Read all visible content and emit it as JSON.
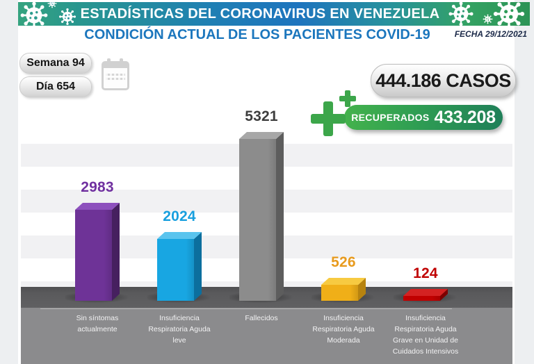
{
  "header": {
    "title": "ESTADÍSTICAS DEL CORONAVIRUS EN VENEZUELA",
    "subtitle": "CONDICIÓN ACTUAL DE LOS PACIENTES COVID-19",
    "date_label": "FECHA 29/12/2021",
    "band_gradient": [
      "#35a37f",
      "#1e74be",
      "#2b9355"
    ],
    "subtitle_color": "#1b76bd"
  },
  "counters": {
    "week_badge": "Semana 94",
    "day_badge": "Día 654",
    "cases_badge": "444.186 CASOS",
    "recovered_label": "RECUPERADOS",
    "recovered_value": "433.208",
    "recovered_pill_colors": [
      "#44b24c",
      "#1f7f58"
    ]
  },
  "icons": {
    "calendar": "calendar",
    "medical_cross": "medical-cross",
    "virus": "virus",
    "cross_color": "#3ca64a"
  },
  "chart_data": {
    "type": "bar",
    "title": "CONDICIÓN ACTUAL DE LOS PACIENTES COVID-19",
    "xlabel": "",
    "ylabel": "",
    "ylim": [
      0,
      5600
    ],
    "grid": "alternating horizontal light-gray bands",
    "legend": "none",
    "style": "3d-bars on dark floor, value labels above bars",
    "categories": [
      "Sin síntomas\nactualmente",
      "Insuficiencia\nRespiratoria Aguda\nleve",
      "Fallecidos",
      "Insuficiencia\nRespiratoria Aguda\nModerada",
      "Insuficiencia\nRespiratoria Aguda\nGrave en Unidad de\nCuidados Intensivos"
    ],
    "values": [
      2983,
      2024,
      5321,
      526,
      124
    ],
    "bar_colors": [
      {
        "front": "#6e3397",
        "top": "#8d50bd",
        "side": "#46205f",
        "value_text": "#7030a0"
      },
      {
        "front": "#18a6e2",
        "top": "#5ac4ee",
        "side": "#0c6f9e",
        "value_text": "#189fde"
      },
      {
        "front": "#8c8c8c",
        "top": "#a7a7a7",
        "side": "#5d5d5d",
        "value_text": "#3d3d3d"
      },
      {
        "front": "#f0af18",
        "top": "#f7ca41",
        "side": "#b7830f",
        "value_text": "#e89b1e"
      },
      {
        "front": "#c00000",
        "top": "#d42222",
        "side": "#7d0000",
        "value_text": "#c00000"
      }
    ]
  }
}
